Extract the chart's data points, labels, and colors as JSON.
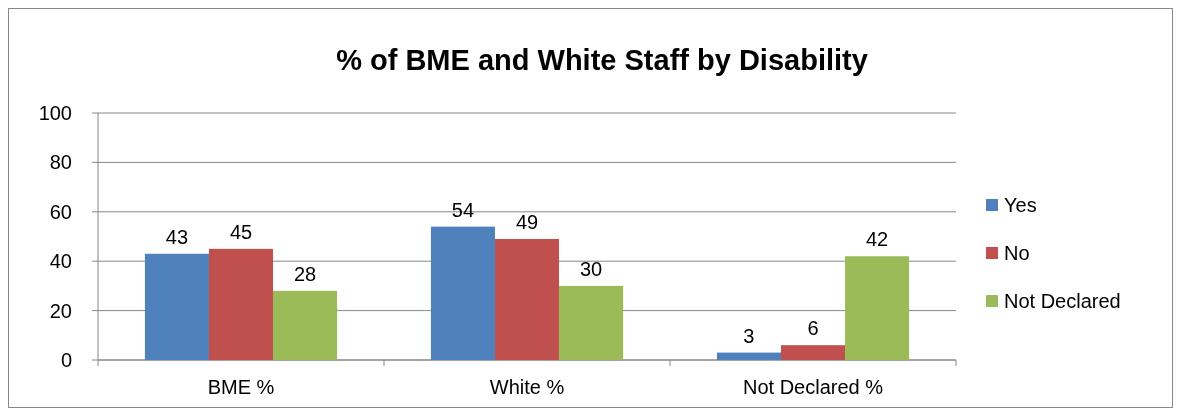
{
  "chart_data": {
    "type": "bar",
    "title": "% of BME and White Staff by Disability",
    "categories": [
      "BME %",
      "White %",
      "Not Declared %"
    ],
    "series": [
      {
        "name": "Yes",
        "color": "#4f81bd",
        "values": [
          43,
          54,
          3
        ]
      },
      {
        "name": "No",
        "color": "#c0504d",
        "values": [
          45,
          49,
          6
        ]
      },
      {
        "name": "Not Declared",
        "color": "#9bbb59",
        "values": [
          28,
          30,
          42
        ]
      }
    ],
    "ylim": [
      0,
      100
    ],
    "yticks": [
      0,
      20,
      40,
      60,
      80,
      100
    ],
    "grid": "y",
    "legend": "right",
    "data_labels": true
  }
}
